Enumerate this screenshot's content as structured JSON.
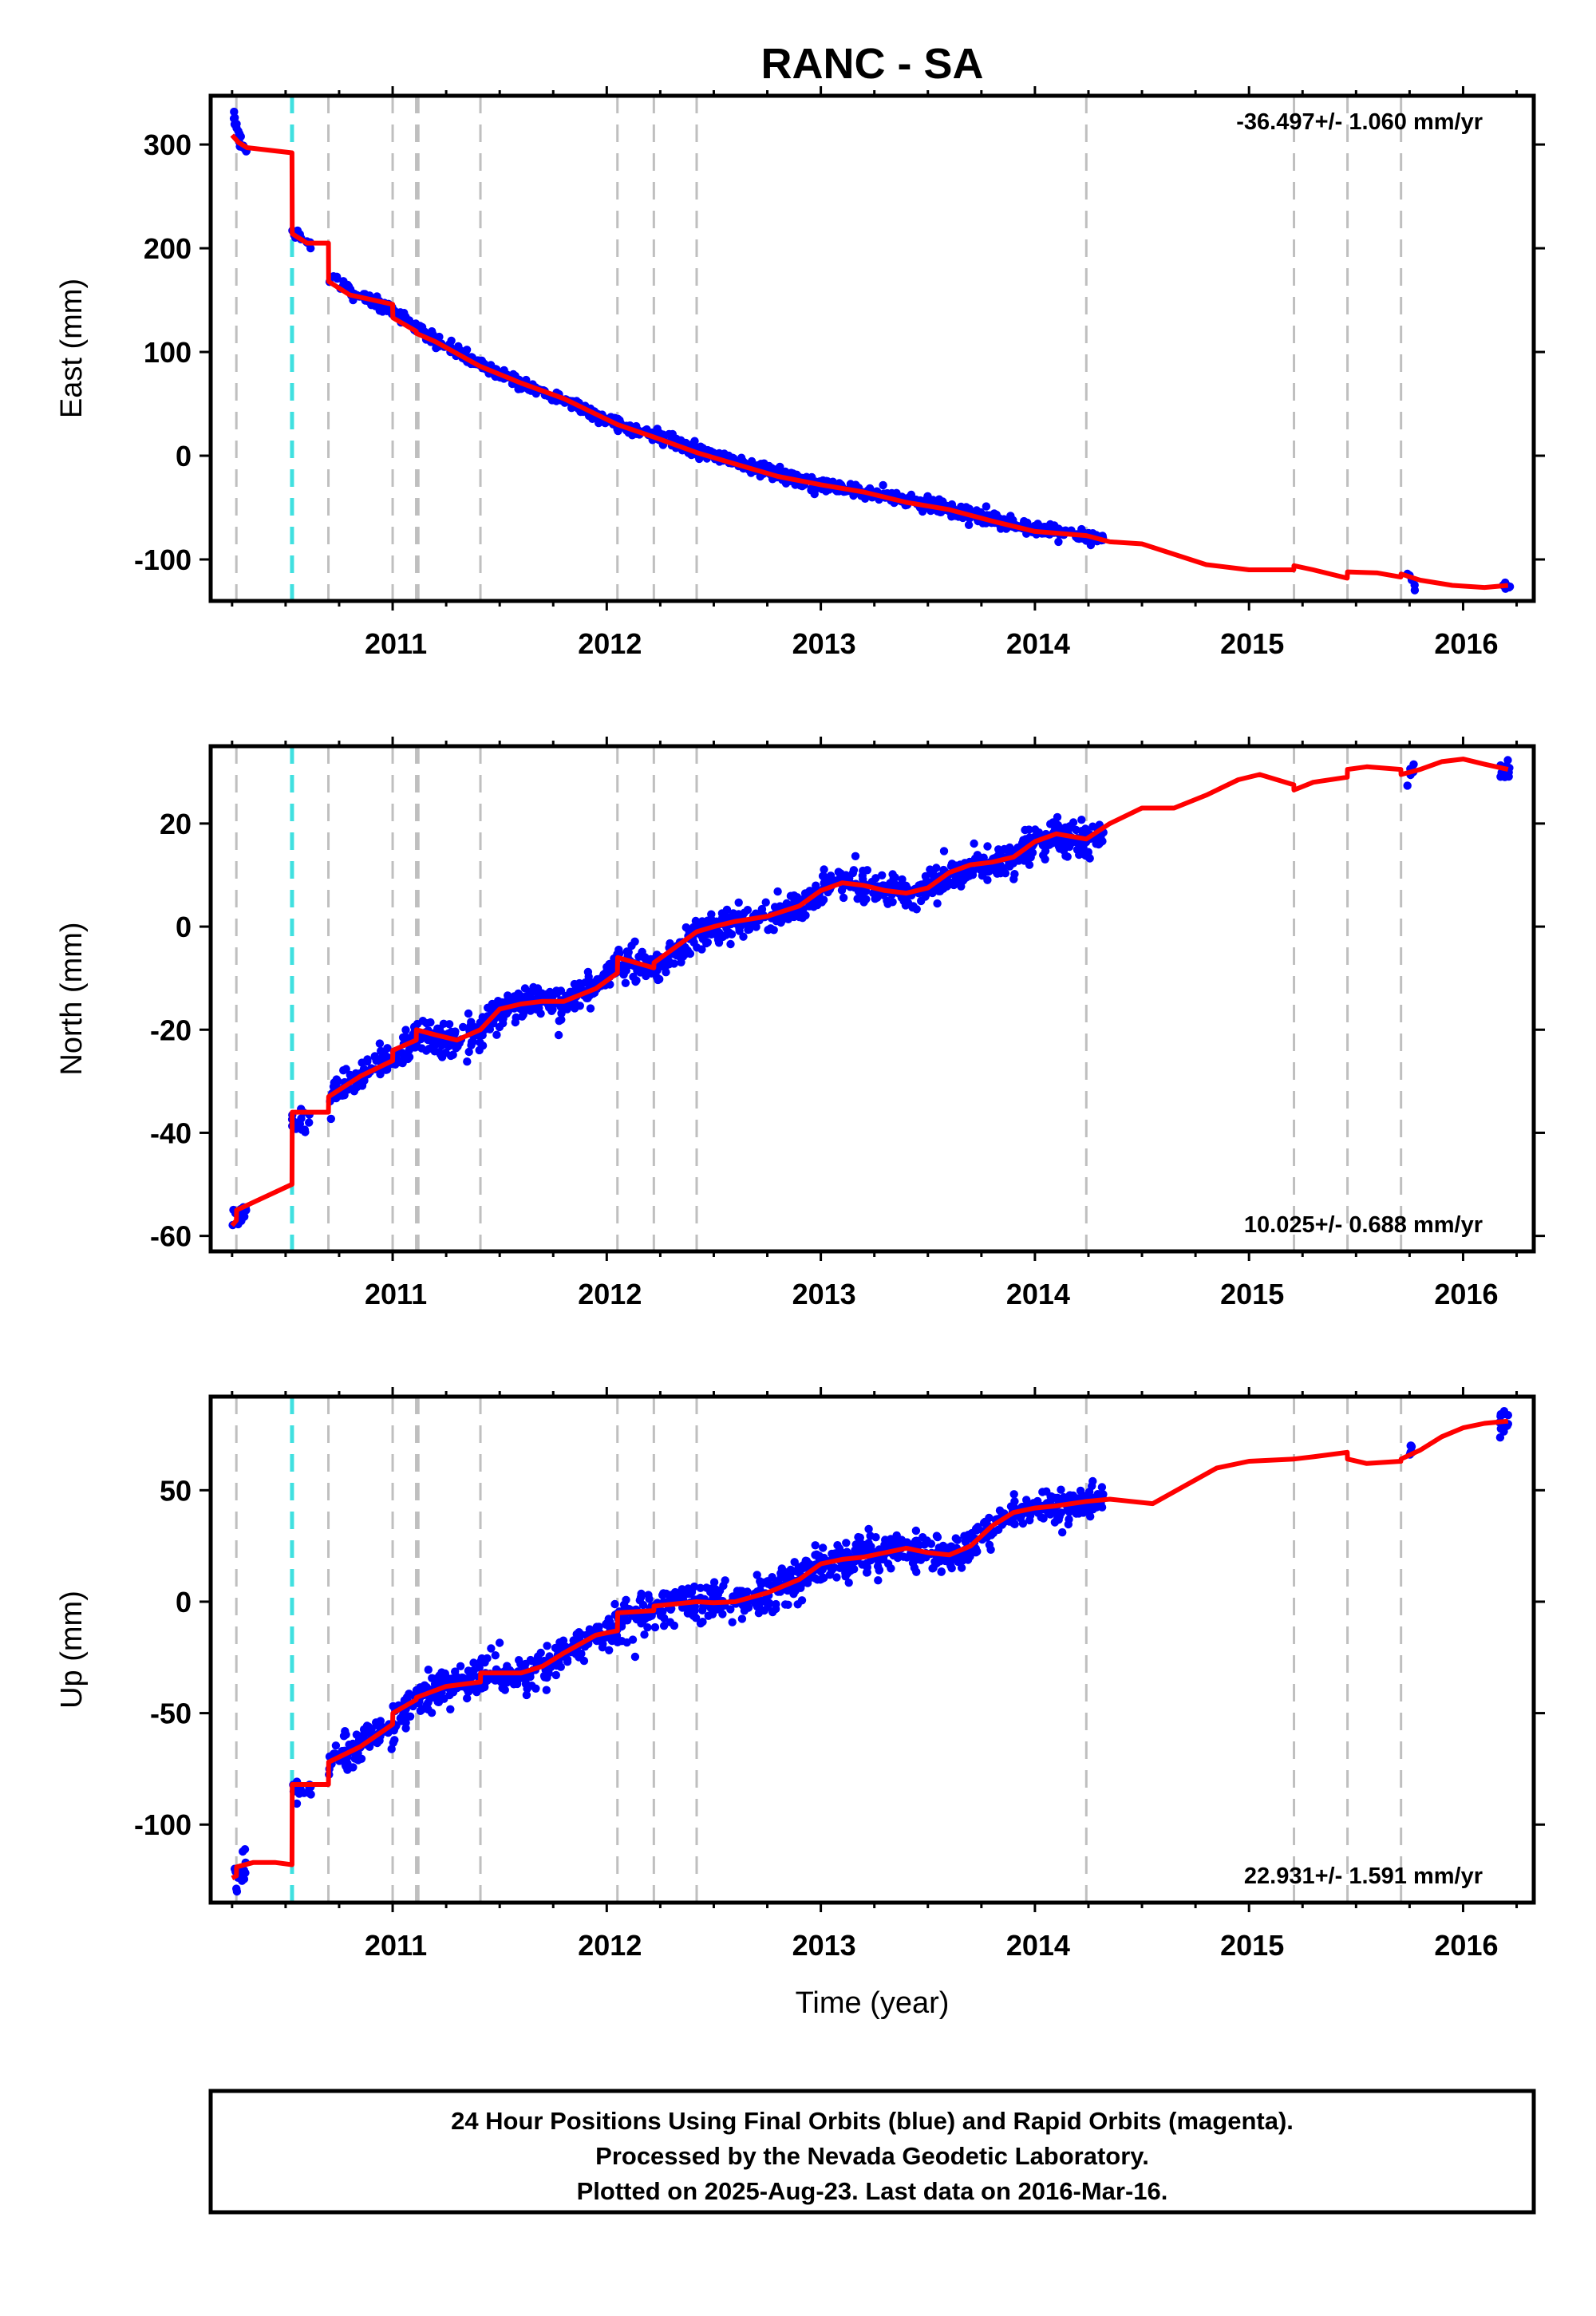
{
  "title": "RANC - SA",
  "colors": {
    "final_orbits": "#0000ff",
    "model": "#ff0000",
    "equipment_change": "#bfbfbf",
    "earthquake": "#40e0e0"
  },
  "chart_data": [
    {
      "type": "scatter",
      "component": "East",
      "ylabel": "East (mm)",
      "xlabel": "",
      "xlim": [
        2010.15,
        2016.33
      ],
      "ylim": [
        -140,
        347
      ],
      "xticks": [
        2011,
        2012,
        2013,
        2014,
        2015,
        2016
      ],
      "yticks": [
        -100,
        0,
        100,
        200,
        300
      ],
      "rate_label": "-36.497+/- 1.060 mm/yr",
      "rate_position": "top-right",
      "step_epochs": [
        2010.27,
        2010.7,
        2011.0,
        2011.11,
        2011.12,
        2011.41,
        2012.05,
        2012.22,
        2012.42,
        2014.24,
        2015.21,
        2015.46,
        2015.71
      ],
      "earthquake_epochs": [
        2010.53
      ],
      "model": {
        "x": [
          2010.25,
          2010.28,
          2010.32,
          2010.53,
          2010.531,
          2010.6,
          2010.7,
          2010.701,
          2010.8,
          2011.0,
          2011.001,
          2011.11,
          2011.111,
          2011.2,
          2011.41,
          2011.6,
          2011.8,
          2012.05,
          2012.22,
          2012.42,
          2012.6,
          2012.8,
          2013.0,
          2013.2,
          2013.4,
          2013.6,
          2013.8,
          2014.0,
          2014.24,
          2014.35,
          2014.5,
          2014.65,
          2014.8,
          2015.0,
          2015.209,
          2015.21,
          2015.3,
          2015.459,
          2015.46,
          2015.6,
          2015.709,
          2015.71,
          2015.8,
          2015.95,
          2016.1,
          2016.21
        ],
        "y": [
          309,
          302,
          297,
          292,
          214,
          205,
          205,
          168,
          155,
          146,
          133,
          120,
          118,
          110,
          86,
          70,
          55,
          30,
          18,
          3,
          -8,
          -20,
          -28,
          -35,
          -45,
          -52,
          -63,
          -73,
          -77,
          -83,
          -85,
          -95,
          -105,
          -110,
          -110,
          -106,
          -110,
          -118,
          -112,
          -113,
          -117,
          -114,
          -120,
          -125,
          -127,
          -125
        ]
      },
      "segments": [
        {
          "x0": 2010.25,
          "x1": 2010.32,
          "anchors": [
            [
              2010.25,
              333
            ],
            [
              2010.28,
              310
            ],
            [
              2010.32,
              290
            ]
          ],
          "spread": 4,
          "count": 22
        },
        {
          "x0": 2010.53,
          "x1": 2010.62,
          "anchors": [
            [
              2010.53,
              216
            ],
            [
              2010.62,
              205
            ]
          ],
          "spread": 3,
          "count": 16
        },
        {
          "x0": 2010.7,
          "x1": 2010.82,
          "anchors": [
            [
              2010.7,
              172
            ],
            [
              2010.82,
              158
            ]
          ],
          "spread": 3,
          "count": 18
        },
        {
          "x0": 2010.82,
          "x1": 2014.32,
          "anchors": [
            [
              2010.82,
              158
            ],
            [
              2011.0,
              140
            ],
            [
              2011.2,
              112
            ],
            [
              2011.41,
              87
            ],
            [
              2011.6,
              70
            ],
            [
              2011.8,
              54
            ],
            [
              2012.05,
              30
            ],
            [
              2012.22,
              19
            ],
            [
              2012.42,
              5
            ],
            [
              2012.6,
              -5
            ],
            [
              2012.8,
              -18
            ],
            [
              2013.0,
              -28
            ],
            [
              2013.2,
              -34
            ],
            [
              2013.4,
              -43
            ],
            [
              2013.6,
              -51
            ],
            [
              2013.8,
              -62
            ],
            [
              2014.0,
              -71
            ],
            [
              2014.32,
              -79
            ]
          ],
          "spread": 3,
          "count": 1000
        },
        {
          "x0": 2015.74,
          "x1": 2015.78,
          "anchors": [
            [
              2015.74,
              -116
            ],
            [
              2015.78,
              -120
            ]
          ],
          "spread": 4,
          "count": 6
        },
        {
          "x0": 2016.18,
          "x1": 2016.22,
          "anchors": [
            [
              2016.18,
              -126
            ],
            [
              2016.22,
              -126
            ]
          ],
          "spread": 2,
          "count": 10
        }
      ]
    },
    {
      "type": "scatter",
      "component": "North",
      "ylabel": "North (mm)",
      "xlabel": "",
      "xlim": [
        2010.15,
        2016.33
      ],
      "ylim": [
        -63,
        35
      ],
      "xticks": [
        2011,
        2012,
        2013,
        2014,
        2015,
        2016
      ],
      "yticks": [
        -60,
        -40,
        -20,
        0,
        20
      ],
      "rate_label": "10.025+/- 0.688 mm/yr",
      "rate_position": "bottom-right",
      "step_epochs": [
        2010.27,
        2010.7,
        2011.0,
        2011.11,
        2011.12,
        2011.41,
        2012.05,
        2012.22,
        2012.42,
        2014.24,
        2015.21,
        2015.46,
        2015.71
      ],
      "earthquake_epochs": [
        2010.53
      ],
      "model": {
        "x": [
          2010.25,
          2010.27,
          2010.271,
          2010.53,
          2010.531,
          2010.7,
          2010.701,
          2010.85,
          2011.0,
          2011.001,
          2011.11,
          2011.111,
          2011.2,
          2011.3,
          2011.41,
          2011.5,
          2011.6,
          2011.7,
          2011.8,
          2011.95,
          2012.05,
          2012.051,
          2012.22,
          2012.221,
          2012.42,
          2012.5,
          2012.6,
          2012.75,
          2012.9,
          2013.0,
          2013.1,
          2013.2,
          2013.3,
          2013.4,
          2013.5,
          2013.6,
          2013.7,
          2013.8,
          2013.9,
          2014.0,
          2014.1,
          2014.24,
          2014.35,
          2014.5,
          2014.65,
          2014.8,
          2014.95,
          2015.05,
          2015.209,
          2015.21,
          2015.3,
          2015.459,
          2015.46,
          2015.55,
          2015.709,
          2015.71,
          2015.8,
          2015.9,
          2016.0,
          2016.1,
          2016.21
        ],
        "y": [
          -58,
          -57,
          -55,
          -50,
          -36,
          -36,
          -33,
          -29,
          -26,
          -24,
          -22,
          -20,
          -21,
          -22,
          -20,
          -16,
          -15,
          -14.5,
          -14.5,
          -12,
          -9,
          -6,
          -8,
          -7,
          -1,
          0,
          1,
          2,
          4,
          7,
          8.5,
          8,
          7,
          6.5,
          7.5,
          10.5,
          12,
          12.5,
          13.5,
          16.5,
          18,
          17,
          20,
          23,
          23,
          25.5,
          28.5,
          29.5,
          27.5,
          26.5,
          28,
          29,
          30.5,
          31,
          30.5,
          29.5,
          30.5,
          32,
          32.5,
          31.5,
          30.5
        ]
      },
      "segments": [
        {
          "x0": 2010.25,
          "x1": 2010.32,
          "anchors": [
            [
              2010.25,
              -58
            ],
            [
              2010.32,
              -55
            ]
          ],
          "spread": 1.3,
          "count": 20
        },
        {
          "x0": 2010.53,
          "x1": 2010.62,
          "anchors": [
            [
              2010.53,
              -38
            ],
            [
              2010.62,
              -37
            ]
          ],
          "spread": 1.2,
          "count": 16
        },
        {
          "x0": 2010.7,
          "x1": 2014.32,
          "anchors": [
            [
              2010.7,
              -33
            ],
            [
              2010.85,
              -29
            ],
            [
              2011.0,
              -25.5
            ],
            [
              2011.1,
              -21.5
            ],
            [
              2011.2,
              -21
            ],
            [
              2011.3,
              -22
            ],
            [
              2011.41,
              -20
            ],
            [
              2011.5,
              -16
            ],
            [
              2011.6,
              -15
            ],
            [
              2011.7,
              -14.5
            ],
            [
              2011.8,
              -14.5
            ],
            [
              2011.95,
              -11.5
            ],
            [
              2012.05,
              -7
            ],
            [
              2012.15,
              -7
            ],
            [
              2012.22,
              -7.5
            ],
            [
              2012.3,
              -6
            ],
            [
              2012.42,
              -1.5
            ],
            [
              2012.5,
              0
            ],
            [
              2012.6,
              1
            ],
            [
              2012.75,
              2
            ],
            [
              2012.9,
              4
            ],
            [
              2013.0,
              7
            ],
            [
              2013.1,
              8.5
            ],
            [
              2013.2,
              8
            ],
            [
              2013.3,
              7
            ],
            [
              2013.4,
              6.5
            ],
            [
              2013.5,
              7.5
            ],
            [
              2013.6,
              10.5
            ],
            [
              2013.7,
              12
            ],
            [
              2013.8,
              12.5
            ],
            [
              2013.9,
              13.5
            ],
            [
              2014.0,
              16.5
            ],
            [
              2014.1,
              18
            ],
            [
              2014.24,
              16.5
            ],
            [
              2014.32,
              17.5
            ]
          ],
          "spread": 1.6,
          "count": 1100
        },
        {
          "x0": 2015.74,
          "x1": 2015.78,
          "anchors": [
            [
              2015.74,
              30
            ],
            [
              2015.78,
              31
            ]
          ],
          "spread": 1.2,
          "count": 6
        },
        {
          "x0": 2016.17,
          "x1": 2016.22,
          "anchors": [
            [
              2016.17,
              30.5
            ],
            [
              2016.22,
              30.5
            ]
          ],
          "spread": 1.2,
          "count": 14
        }
      ]
    },
    {
      "type": "scatter",
      "component": "Up",
      "ylabel": "Up (mm)",
      "xlabel": "Time (year)",
      "xlim": [
        2010.15,
        2016.33
      ],
      "ylim": [
        -135,
        92
      ],
      "xticks": [
        2011,
        2012,
        2013,
        2014,
        2015,
        2016
      ],
      "yticks": [
        -100,
        -50,
        0,
        50
      ],
      "rate_label": "22.931+/- 1.591 mm/yr",
      "rate_position": "bottom-right",
      "step_epochs": [
        2010.27,
        2010.7,
        2011.0,
        2011.11,
        2011.12,
        2011.41,
        2012.05,
        2012.22,
        2012.42,
        2014.24,
        2015.21,
        2015.46,
        2015.71
      ],
      "earthquake_epochs": [
        2010.53
      ],
      "model": {
        "x": [
          2010.25,
          2010.27,
          2010.271,
          2010.35,
          2010.45,
          2010.53,
          2010.531,
          2010.7,
          2010.701,
          2010.85,
          2011.0,
          2011.001,
          2011.11,
          2011.111,
          2011.25,
          2011.41,
          2011.411,
          2011.5,
          2011.6,
          2011.7,
          2011.8,
          2011.95,
          2012.05,
          2012.051,
          2012.22,
          2012.221,
          2012.42,
          2012.5,
          2012.6,
          2012.75,
          2012.9,
          2013.0,
          2013.1,
          2013.2,
          2013.3,
          2013.4,
          2013.5,
          2013.6,
          2013.7,
          2013.8,
          2013.9,
          2014.0,
          2014.1,
          2014.24,
          2014.35,
          2014.45,
          2014.55,
          2014.7,
          2014.85,
          2015.0,
          2015.209,
          2015.21,
          2015.3,
          2015.459,
          2015.46,
          2015.55,
          2015.709,
          2015.71,
          2015.8,
          2015.9,
          2016.0,
          2016.1,
          2016.21
        ],
        "y": [
          -124,
          -123,
          -119,
          -117,
          -117,
          -118,
          -82,
          -82,
          -72,
          -65,
          -55,
          -50,
          -44,
          -43,
          -38,
          -36,
          -32,
          -32,
          -32,
          -29,
          -23,
          -15,
          -13,
          -5,
          -4,
          -2,
          0,
          -0.5,
          0,
          4,
          10,
          17,
          19,
          20,
          22,
          24,
          22,
          21,
          25,
          34,
          40,
          42,
          43,
          45,
          46,
          45,
          44,
          52,
          60,
          63,
          64,
          64,
          65,
          67,
          64,
          62,
          63,
          64,
          68,
          74,
          78,
          80,
          81
        ]
      },
      "segments": [
        {
          "x0": 2010.25,
          "x1": 2010.32,
          "anchors": [
            [
              2010.25,
              -125
            ],
            [
              2010.32,
              -117
            ]
          ],
          "spread": 3,
          "count": 20
        },
        {
          "x0": 2010.53,
          "x1": 2010.62,
          "anchors": [
            [
              2010.53,
              -85
            ],
            [
              2010.62,
              -83
            ]
          ],
          "spread": 2.5,
          "count": 16
        },
        {
          "x0": 2010.7,
          "x1": 2014.32,
          "anchors": [
            [
              2010.7,
              -72
            ],
            [
              2010.85,
              -64
            ],
            [
              2011.0,
              -55
            ],
            [
              2011.11,
              -44
            ],
            [
              2011.25,
              -38
            ],
            [
              2011.41,
              -34
            ],
            [
              2011.5,
              -32
            ],
            [
              2011.6,
              -34
            ],
            [
              2011.7,
              -30
            ],
            [
              2011.8,
              -23
            ],
            [
              2011.95,
              -15
            ],
            [
              2012.05,
              -10
            ],
            [
              2012.22,
              -3
            ],
            [
              2012.42,
              0
            ],
            [
              2012.5,
              -0.5
            ],
            [
              2012.6,
              0
            ],
            [
              2012.75,
              4
            ],
            [
              2012.9,
              10
            ],
            [
              2013.0,
              17
            ],
            [
              2013.1,
              19
            ],
            [
              2013.2,
              20
            ],
            [
              2013.3,
              22
            ],
            [
              2013.4,
              24
            ],
            [
              2013.5,
              22
            ],
            [
              2013.6,
              21
            ],
            [
              2013.7,
              25
            ],
            [
              2013.8,
              34
            ],
            [
              2013.9,
              40
            ],
            [
              2014.0,
              42
            ],
            [
              2014.1,
              43
            ],
            [
              2014.24,
              45
            ],
            [
              2014.32,
              45
            ]
          ],
          "spread": 4,
          "count": 1100
        },
        {
          "x0": 2015.75,
          "x1": 2015.77,
          "anchors": [
            [
              2015.75,
              65
            ],
            [
              2015.77,
              70
            ]
          ],
          "spread": 8,
          "count": 6
        },
        {
          "x0": 2016.17,
          "x1": 2016.22,
          "anchors": [
            [
              2016.17,
              80
            ],
            [
              2016.22,
              81
            ]
          ],
          "spread": 3,
          "count": 16
        }
      ]
    }
  ],
  "footer": {
    "line1": "24 Hour Positions Using Final Orbits (blue) and Rapid Orbits (magenta).",
    "line2": "Processed by the Nevada Geodetic Laboratory.",
    "line3": "Plotted on 2025-Aug-23. Last data on 2016-Mar-16."
  }
}
